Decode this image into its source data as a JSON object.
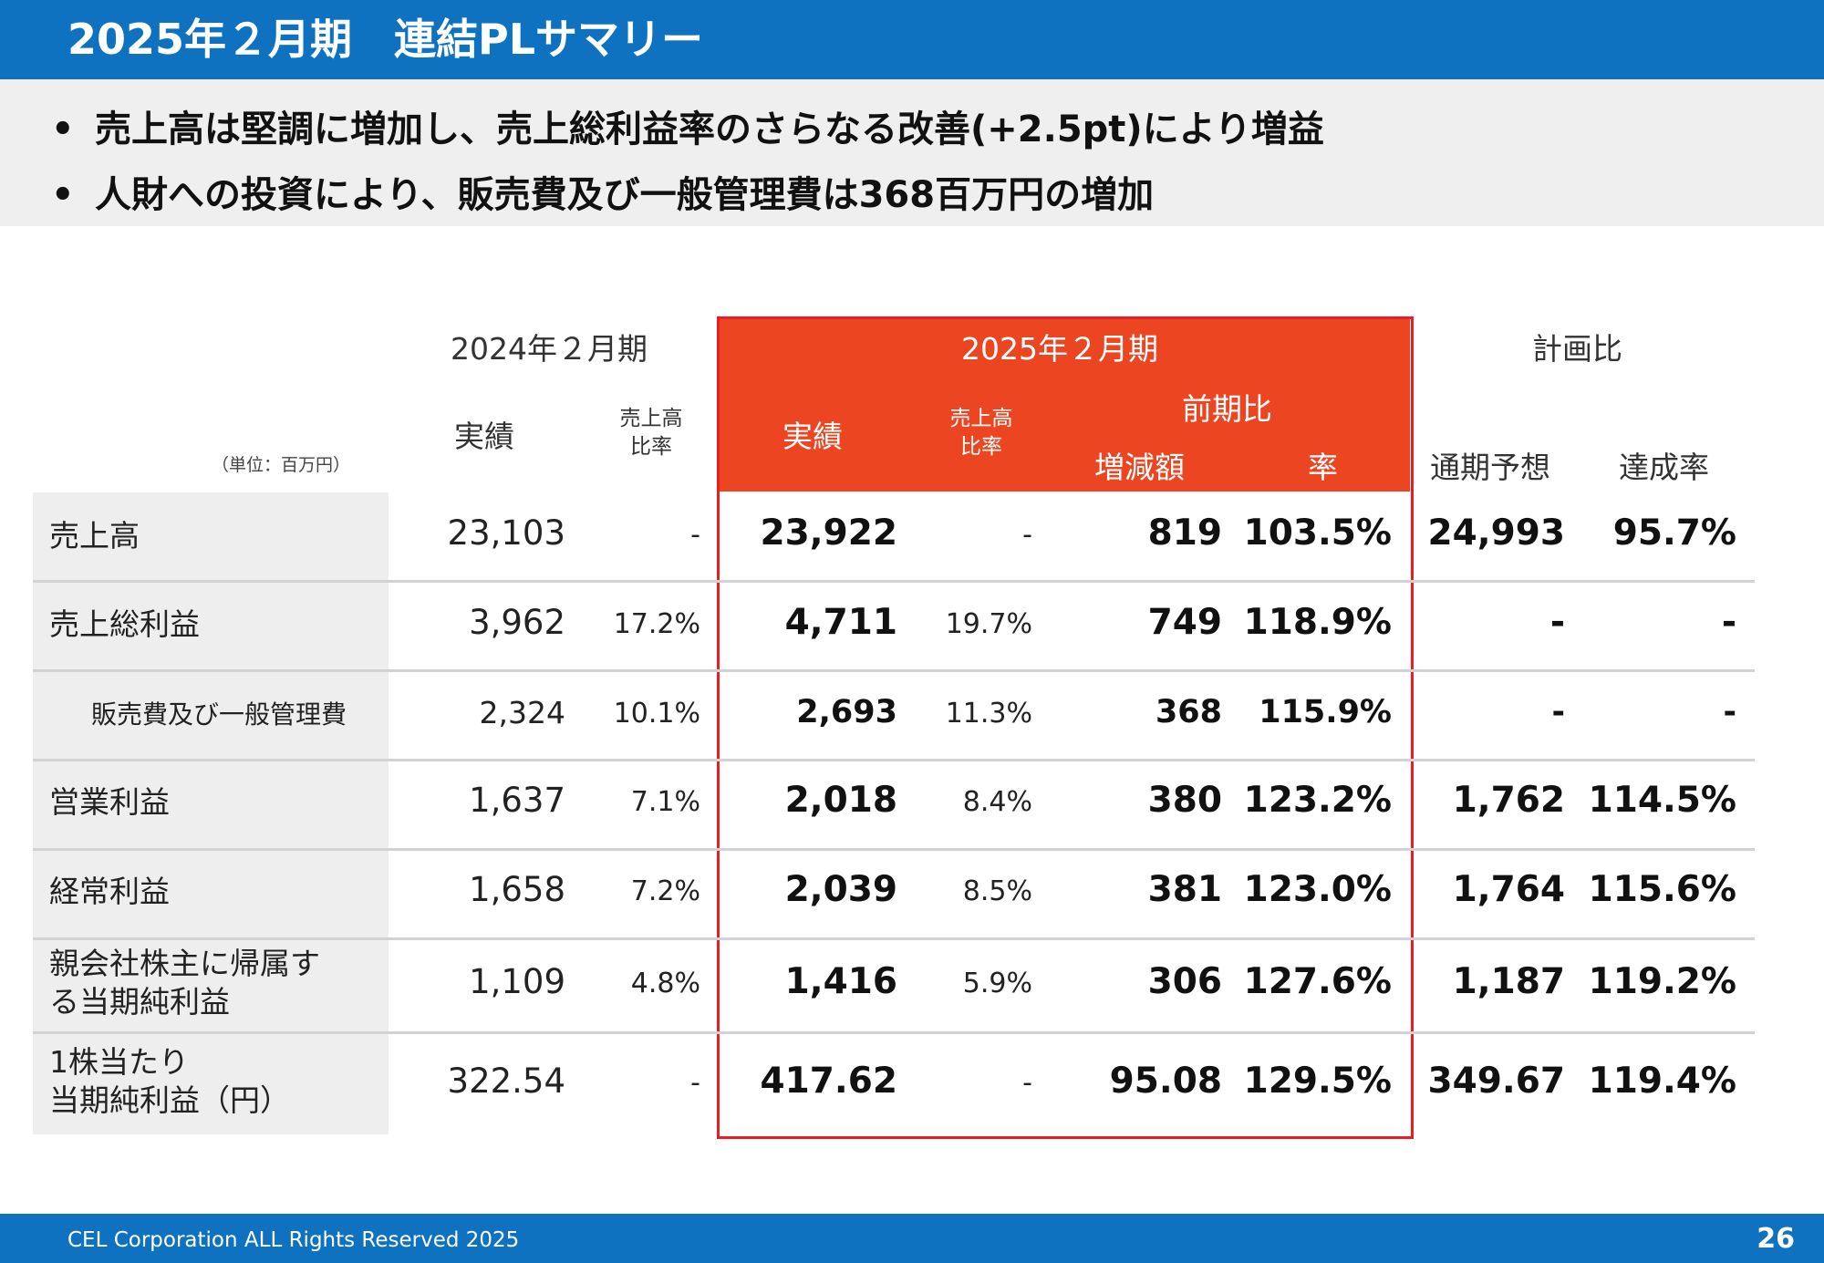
{
  "title": "2025年２月期　連結PLサマリー",
  "bullets": [
    "売上高は堅調に増加し、売上総利益率のさらなる改善(+2.5pt)により増益",
    "人財への投資により、販売費及び一般管理費は368百万円の増加"
  ],
  "table": {
    "unit": "（単位：百万円）",
    "headers": {
      "prev_period": "2024年２月期",
      "cur_period": "2025年２月期",
      "plan": "計画比",
      "actual": "実績",
      "ratio_line1": "売上高",
      "ratio_line2": "比率",
      "yoy": "前期比",
      "change": "増減額",
      "rate": "率",
      "forecast": "通期予想",
      "achievement": "達成率"
    },
    "rows": [
      {
        "label": "売上高",
        "prev": "23,103",
        "prev_ratio": "-",
        "cur": "23,922",
        "cur_ratio": "-",
        "change": "819",
        "rate": "103.5%",
        "forecast": "24,993",
        "achievement": "95.7%"
      },
      {
        "label": "売上総利益",
        "prev": "3,962",
        "prev_ratio": "17.2%",
        "cur": "4,711",
        "cur_ratio": "19.7%",
        "change": "749",
        "rate": "118.9%",
        "forecast": "-",
        "achievement": "-"
      },
      {
        "label": "販売費及び一般管理費",
        "prev": "2,324",
        "prev_ratio": "10.1%",
        "cur": "2,693",
        "cur_ratio": "11.3%",
        "change": "368",
        "rate": "115.9%",
        "forecast": "-",
        "achievement": "-"
      },
      {
        "label": "営業利益",
        "prev": "1,637",
        "prev_ratio": "7.1%",
        "cur": "2,018",
        "cur_ratio": "8.4%",
        "change": "380",
        "rate": "123.2%",
        "forecast": "1,762",
        "achievement": "114.5%"
      },
      {
        "label": "経常利益",
        "prev": "1,658",
        "prev_ratio": "7.2%",
        "cur": "2,039",
        "cur_ratio": "8.5%",
        "change": "381",
        "rate": "123.0%",
        "forecast": "1,764",
        "achievement": "115.6%"
      },
      {
        "label1": "親会社株主に帰属す",
        "label2": "る当期純利益",
        "prev": "1,109",
        "prev_ratio": "4.8%",
        "cur": "1,416",
        "cur_ratio": "5.9%",
        "change": "306",
        "rate": "127.6%",
        "forecast": "1,187",
        "achievement": "119.2%"
      },
      {
        "label1": "1株当たり",
        "label2": "当期純利益（円）",
        "prev": "322.54",
        "prev_ratio": "-",
        "cur": "417.62",
        "cur_ratio": "-",
        "change": "95.08",
        "rate": "129.5%",
        "forecast": "349.67",
        "achievement": "119.4%"
      }
    ]
  },
  "footer": {
    "copyright": "CEL Corporation ALL Rights Reserved 2025",
    "page": "26"
  },
  "colors": {
    "brand_blue": "#0f72c1",
    "highlight_red": "#ec4522",
    "border_red": "#ec1c24"
  }
}
